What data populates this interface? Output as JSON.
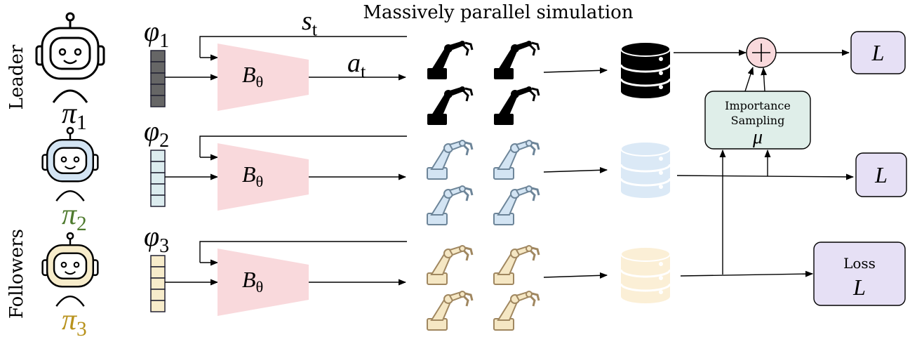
{
  "title": "Massively parallel simulation",
  "group_labels": {
    "leader": "Leader",
    "followers": "Followers"
  },
  "state_label": {
    "symbol": "s",
    "index": "t"
  },
  "action_label": {
    "symbol": "a",
    "index": "t"
  },
  "rows": [
    {
      "policy": {
        "symbol": "π",
        "index": "1"
      },
      "embedding": {
        "symbol": "φ",
        "index": "1"
      },
      "network": {
        "symbol": "B",
        "index": "θ"
      }
    },
    {
      "policy": {
        "symbol": "π",
        "index": "2"
      },
      "embedding": {
        "symbol": "φ",
        "index": "2"
      },
      "network": {
        "symbol": "B",
        "index": "θ"
      }
    },
    {
      "policy": {
        "symbol": "π",
        "index": "3"
      },
      "embedding": {
        "symbol": "φ",
        "index": "3"
      },
      "network": {
        "symbol": "B",
        "index": "θ"
      }
    }
  ],
  "importance_sampling": {
    "lines": [
      "Importance",
      "Sampling"
    ],
    "symbol": "μ"
  },
  "losses": [
    {
      "symbol": "L"
    },
    {
      "symbol": "L"
    },
    {
      "caption": "Loss",
      "symbol": "L"
    }
  ]
}
